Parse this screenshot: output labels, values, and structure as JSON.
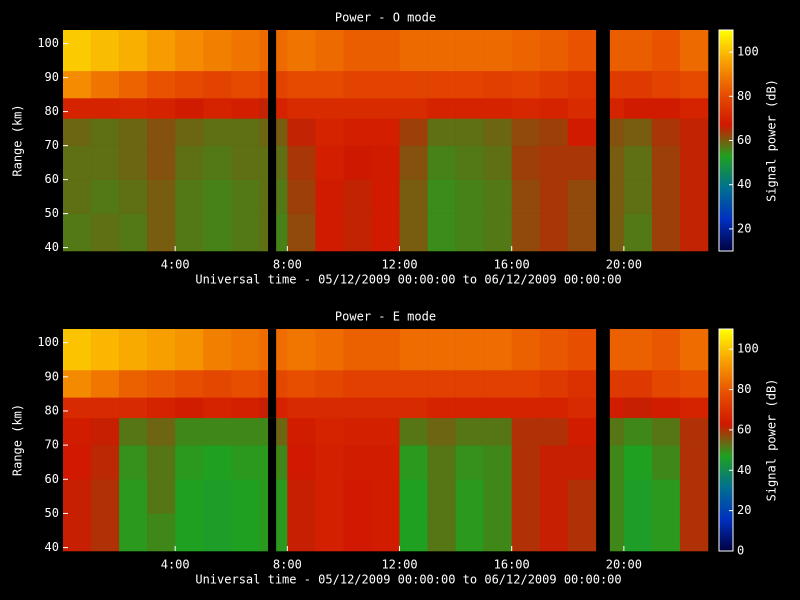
{
  "chart_data": [
    {
      "type": "heatmap",
      "title": "Power - O mode",
      "xlabel": "Universal time - 05/12/2009 00:00:00 to 06/12/2009 00:00:00",
      "ylabel": "Range (km)",
      "xlim": [
        0,
        23
      ],
      "ylim": [
        39,
        104
      ],
      "xticks": [
        {
          "value": 4,
          "label": "4:00"
        },
        {
          "value": 8,
          "label": "8:00"
        },
        {
          "value": 12,
          "label": "12:00"
        },
        {
          "value": 16,
          "label": "16:00"
        },
        {
          "value": 20,
          "label": "20:00"
        }
      ],
      "yticks": [
        40,
        50,
        60,
        70,
        80,
        90,
        100
      ],
      "x_bins": [
        0,
        1,
        2,
        3,
        4,
        5,
        6,
        7,
        7.3,
        7.6,
        8,
        9,
        10,
        11,
        12,
        13,
        14,
        15,
        16,
        17,
        18,
        19,
        19.5,
        20,
        21,
        22,
        23
      ],
      "y_bins": [
        39,
        50,
        60,
        70,
        78,
        84,
        92,
        104
      ],
      "z": [
        [
          57,
          58,
          57,
          60,
          57,
          56,
          57,
          58,
          null,
          56,
          62,
          68,
          66,
          68,
          60,
          55,
          56,
          57,
          62,
          64,
          62,
          null,
          60,
          57,
          63,
          66
        ],
        [
          58,
          57,
          58,
          60,
          57,
          56,
          57,
          58,
          null,
          57,
          63,
          68,
          66,
          68,
          60,
          55,
          56,
          57,
          62,
          64,
          62,
          null,
          60,
          58,
          63,
          66
        ],
        [
          58,
          58,
          59,
          61,
          58,
          57,
          58,
          58,
          null,
          58,
          64,
          69,
          67,
          68,
          61,
          56,
          57,
          58,
          63,
          64,
          64,
          null,
          60,
          58,
          63,
          66
        ],
        [
          59,
          58,
          59,
          61,
          59,
          58,
          58,
          59,
          null,
          60,
          66,
          70,
          69,
          69,
          63,
          58,
          58,
          59,
          62,
          63,
          68,
          null,
          61,
          60,
          64,
          66
        ],
        [
          70,
          70,
          71,
          70,
          68,
          70,
          69,
          66,
          null,
          70,
          72,
          72,
          72,
          72,
          72,
          70,
          70,
          70,
          71,
          70,
          72,
          null,
          70,
          68,
          68,
          70
        ],
        [
          92,
          88,
          85,
          82,
          80,
          78,
          80,
          78,
          null,
          78,
          80,
          80,
          78,
          78,
          78,
          78,
          78,
          77,
          78,
          76,
          74,
          null,
          76,
          76,
          78,
          80
        ],
        [
          102,
          100,
          98,
          95,
          92,
          90,
          88,
          86,
          null,
          86,
          88,
          86,
          84,
          84,
          86,
          86,
          86,
          86,
          85,
          84,
          82,
          null,
          84,
          84,
          82,
          86
        ]
      ],
      "colorbar": {
        "label": "Signal power (dB)",
        "lim": [
          10,
          110
        ],
        "ticks": [
          20,
          40,
          60,
          80,
          100
        ]
      },
      "colormap": [
        "#000040",
        "#0030c0",
        "#007090",
        "#20a020",
        "#d01800",
        "#e85000",
        "#f8a000",
        "#ffff00"
      ]
    },
    {
      "type": "heatmap",
      "title": "Power - E mode",
      "xlabel": "Universal time - 05/12/2009 00:00:00 to 06/12/2009 00:00:00",
      "ylabel": "Range (km)",
      "xlim": [
        0,
        23
      ],
      "ylim": [
        39,
        104
      ],
      "xticks": [
        {
          "value": 4,
          "label": "4:00"
        },
        {
          "value": 8,
          "label": "8:00"
        },
        {
          "value": 12,
          "label": "12:00"
        },
        {
          "value": 16,
          "label": "16:00"
        },
        {
          "value": 20,
          "label": "20:00"
        }
      ],
      "yticks": [
        40,
        50,
        60,
        70,
        80,
        90,
        100
      ],
      "x_bins": [
        0,
        1,
        2,
        3,
        4,
        5,
        6,
        7,
        7.3,
        7.6,
        8,
        9,
        10,
        11,
        12,
        13,
        14,
        15,
        16,
        17,
        18,
        19,
        19.5,
        20,
        21,
        22,
        23
      ],
      "y_bins": [
        39,
        50,
        60,
        70,
        78,
        84,
        92,
        104
      ],
      "z": [
        [
          62,
          60,
          48,
          50,
          47,
          46,
          47,
          48,
          null,
          48,
          62,
          65,
          63,
          64,
          47,
          52,
          48,
          50,
          60,
          62,
          60,
          null,
          50,
          46,
          48,
          60
        ],
        [
          62,
          60,
          48,
          52,
          47,
          46,
          47,
          48,
          null,
          48,
          62,
          65,
          63,
          64,
          47,
          52,
          48,
          50,
          60,
          62,
          60,
          null,
          50,
          46,
          48,
          60
        ],
        [
          63,
          61,
          49,
          52,
          48,
          47,
          48,
          48,
          null,
          50,
          63,
          65,
          64,
          64,
          48,
          52,
          49,
          50,
          60,
          62,
          62,
          null,
          50,
          47,
          50,
          60
        ],
        [
          64,
          62,
          52,
          54,
          50,
          50,
          50,
          50,
          null,
          54,
          64,
          66,
          65,
          65,
          52,
          54,
          52,
          52,
          60,
          60,
          64,
          null,
          52,
          50,
          52,
          60
        ],
        [
          68,
          68,
          68,
          66,
          64,
          66,
          65,
          62,
          null,
          66,
          68,
          68,
          68,
          68,
          68,
          66,
          66,
          66,
          66,
          66,
          68,
          null,
          64,
          62,
          64,
          66
        ],
        [
          90,
          86,
          82,
          80,
          78,
          76,
          78,
          76,
          null,
          76,
          78,
          76,
          74,
          74,
          74,
          74,
          74,
          74,
          74,
          72,
          70,
          null,
          72,
          72,
          76,
          78
        ],
        [
          100,
          98,
          96,
          94,
          92,
          88,
          86,
          84,
          null,
          84,
          86,
          84,
          82,
          82,
          84,
          84,
          84,
          84,
          82,
          80,
          78,
          null,
          82,
          82,
          80,
          84
        ]
      ],
      "colorbar": {
        "label": "Signal power (dB)",
        "lim": [
          0,
          110
        ],
        "ticks": [
          0,
          20,
          40,
          60,
          80,
          100
        ]
      },
      "colormap": [
        "#000040",
        "#0030c0",
        "#007090",
        "#20a020",
        "#d01800",
        "#e85000",
        "#f8a000",
        "#ffff00"
      ]
    }
  ]
}
